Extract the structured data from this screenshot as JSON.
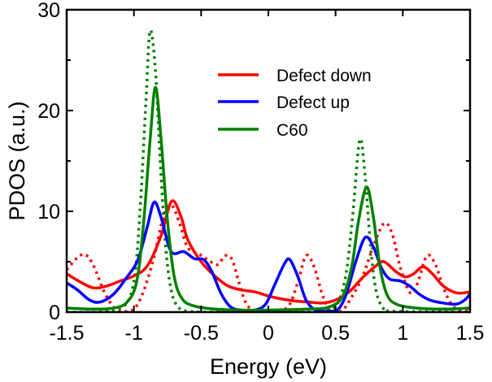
{
  "chart_data": {
    "type": "line",
    "title": "",
    "xlabel": "Energy (eV)",
    "ylabel": "PDOS (a.u.)",
    "xlim": [
      -1.5,
      1.5
    ],
    "ylim": [
      0,
      30
    ],
    "x_ticks": [
      -1.5,
      -1,
      -0.5,
      0,
      0.5,
      1,
      1.5
    ],
    "x_tick_labels": [
      "-1.5",
      "-1",
      "-0.5",
      "0",
      "0.5",
      "1",
      "1.5"
    ],
    "y_ticks": [
      0,
      10,
      20,
      30
    ],
    "y_tick_labels": [
      "0",
      "10",
      "20",
      "30"
    ],
    "y_minor_ticks": [
      5,
      15,
      25
    ],
    "grid": false,
    "legend_position": "top-center",
    "legend": [
      {
        "label": "Defect down",
        "color": "#ff0000"
      },
      {
        "label": "Defect up",
        "color": "#0000ff"
      },
      {
        "label": "C60",
        "color": "#008000"
      }
    ],
    "series": [
      {
        "name": "Defect down",
        "style": "solid",
        "color": "#ff0000",
        "points": [
          [
            -1.5,
            3.8
          ],
          [
            -1.4,
            3.0
          ],
          [
            -1.3,
            2.4
          ],
          [
            -1.2,
            2.6
          ],
          [
            -1.1,
            3.1
          ],
          [
            -1.0,
            3.6
          ],
          [
            -0.9,
            4.6
          ],
          [
            -0.8,
            7.5
          ],
          [
            -0.72,
            11.0
          ],
          [
            -0.65,
            9.5
          ],
          [
            -0.6,
            7.2
          ],
          [
            -0.5,
            5.0
          ],
          [
            -0.4,
            3.6
          ],
          [
            -0.3,
            2.6
          ],
          [
            -0.2,
            2.2
          ],
          [
            -0.1,
            2.0
          ],
          [
            0.0,
            1.6
          ],
          [
            0.1,
            1.3
          ],
          [
            0.2,
            1.1
          ],
          [
            0.3,
            1.0
          ],
          [
            0.4,
            0.9
          ],
          [
            0.5,
            1.2
          ],
          [
            0.6,
            2.0
          ],
          [
            0.7,
            3.4
          ],
          [
            0.8,
            4.6
          ],
          [
            0.86,
            5.0
          ],
          [
            0.95,
            4.0
          ],
          [
            1.02,
            3.5
          ],
          [
            1.08,
            3.8
          ],
          [
            1.15,
            4.5
          ],
          [
            1.22,
            3.8
          ],
          [
            1.3,
            2.6
          ],
          [
            1.4,
            1.9
          ],
          [
            1.5,
            2.0
          ]
        ]
      },
      {
        "name": "Defect down (dotted)",
        "style": "dotted",
        "color": "#ff0000",
        "points": [
          [
            -1.5,
            4.2
          ],
          [
            -1.42,
            5.4
          ],
          [
            -1.36,
            5.7
          ],
          [
            -1.3,
            4.6
          ],
          [
            -1.22,
            2.0
          ],
          [
            -1.15,
            0.5
          ],
          [
            -1.08,
            0.1
          ],
          [
            -1.0,
            0.3
          ],
          [
            -0.93,
            2.0
          ],
          [
            -0.85,
            5.5
          ],
          [
            -0.78,
            9.5
          ],
          [
            -0.72,
            10.6
          ],
          [
            -0.66,
            8.8
          ],
          [
            -0.6,
            6.4
          ],
          [
            -0.52,
            5.8
          ],
          [
            -0.45,
            5.2
          ],
          [
            -0.38,
            4.7
          ],
          [
            -0.32,
            5.6
          ],
          [
            -0.27,
            5.2
          ],
          [
            -0.22,
            3.0
          ],
          [
            -0.17,
            1.0
          ],
          [
            -0.1,
            0.1
          ],
          [
            0.05,
            0.1
          ],
          [
            0.15,
            0.6
          ],
          [
            0.22,
            3.0
          ],
          [
            0.28,
            5.6
          ],
          [
            0.34,
            4.5
          ],
          [
            0.4,
            1.8
          ],
          [
            0.45,
            0.3
          ],
          [
            0.5,
            0.0
          ],
          [
            0.56,
            0.3
          ],
          [
            0.62,
            1.5
          ],
          [
            0.7,
            3.5
          ],
          [
            0.78,
            6.5
          ],
          [
            0.86,
            8.8
          ],
          [
            0.92,
            7.8
          ],
          [
            0.98,
            4.5
          ],
          [
            1.04,
            2.2
          ],
          [
            1.08,
            2.0
          ],
          [
            1.12,
            3.3
          ],
          [
            1.18,
            5.6
          ],
          [
            1.24,
            4.8
          ],
          [
            1.3,
            2.5
          ],
          [
            1.36,
            0.8
          ],
          [
            1.42,
            0.2
          ],
          [
            1.5,
            0.1
          ]
        ]
      },
      {
        "name": "Defect up",
        "style": "solid",
        "color": "#0000ff",
        "points": [
          [
            -1.5,
            2.9
          ],
          [
            -1.42,
            2.2
          ],
          [
            -1.33,
            1.2
          ],
          [
            -1.25,
            1.0
          ],
          [
            -1.15,
            1.8
          ],
          [
            -1.05,
            3.5
          ],
          [
            -0.97,
            5.2
          ],
          [
            -0.9,
            8.5
          ],
          [
            -0.85,
            10.9
          ],
          [
            -0.8,
            9.5
          ],
          [
            -0.74,
            6.5
          ],
          [
            -0.7,
            5.8
          ],
          [
            -0.63,
            6.0
          ],
          [
            -0.55,
            5.3
          ],
          [
            -0.48,
            5.2
          ],
          [
            -0.42,
            4.0
          ],
          [
            -0.35,
            1.8
          ],
          [
            -0.28,
            0.5
          ],
          [
            -0.2,
            0.2
          ],
          [
            -0.1,
            0.2
          ],
          [
            -0.02,
            0.8
          ],
          [
            0.05,
            2.8
          ],
          [
            0.12,
            4.8
          ],
          [
            0.16,
            5.2
          ],
          [
            0.22,
            3.5
          ],
          [
            0.28,
            1.2
          ],
          [
            0.35,
            0.2
          ],
          [
            0.45,
            0.1
          ],
          [
            0.52,
            0.3
          ],
          [
            0.58,
            1.8
          ],
          [
            0.65,
            5.0
          ],
          [
            0.72,
            7.4
          ],
          [
            0.78,
            6.5
          ],
          [
            0.84,
            4.4
          ],
          [
            0.9,
            3.3
          ],
          [
            0.98,
            3.1
          ],
          [
            1.05,
            2.6
          ],
          [
            1.12,
            1.8
          ],
          [
            1.2,
            1.2
          ],
          [
            1.3,
            0.9
          ],
          [
            1.4,
            0.8
          ],
          [
            1.46,
            1.2
          ],
          [
            1.5,
            1.8
          ]
        ]
      },
      {
        "name": "C60",
        "style": "solid",
        "color": "#008000",
        "points": [
          [
            -1.5,
            0.4
          ],
          [
            -1.3,
            0.3
          ],
          [
            -1.15,
            0.4
          ],
          [
            -1.05,
            1.0
          ],
          [
            -0.98,
            3.0
          ],
          [
            -0.93,
            8.5
          ],
          [
            -0.88,
            17.0
          ],
          [
            -0.84,
            22.3
          ],
          [
            -0.8,
            17.5
          ],
          [
            -0.75,
            9.0
          ],
          [
            -0.7,
            3.5
          ],
          [
            -0.64,
            1.3
          ],
          [
            -0.55,
            0.6
          ],
          [
            -0.4,
            0.3
          ],
          [
            -0.2,
            0.2
          ],
          [
            0.0,
            0.2
          ],
          [
            0.3,
            0.3
          ],
          [
            0.45,
            0.5
          ],
          [
            0.55,
            1.5
          ],
          [
            0.62,
            4.5
          ],
          [
            0.67,
            9.0
          ],
          [
            0.73,
            12.4
          ],
          [
            0.78,
            9.5
          ],
          [
            0.83,
            4.5
          ],
          [
            0.88,
            1.8
          ],
          [
            0.95,
            0.8
          ],
          [
            1.1,
            0.4
          ],
          [
            1.3,
            0.3
          ],
          [
            1.5,
            0.4
          ]
        ]
      },
      {
        "name": "C60 (dotted)",
        "style": "dotted",
        "color": "#008000",
        "points": [
          [
            -1.5,
            0.0
          ],
          [
            -1.25,
            0.0
          ],
          [
            -1.12,
            0.3
          ],
          [
            -1.04,
            1.2
          ],
          [
            -0.99,
            4.0
          ],
          [
            -0.95,
            11.0
          ],
          [
            -0.91,
            21.0
          ],
          [
            -0.88,
            27.9
          ],
          [
            -0.84,
            24.0
          ],
          [
            -0.8,
            14.0
          ],
          [
            -0.76,
            6.0
          ],
          [
            -0.72,
            2.0
          ],
          [
            -0.67,
            0.5
          ],
          [
            -0.6,
            0.1
          ],
          [
            -0.4,
            0.0
          ],
          [
            0.3,
            0.0
          ],
          [
            0.45,
            0.2
          ],
          [
            0.52,
            1.0
          ],
          [
            0.58,
            4.0
          ],
          [
            0.63,
            10.0
          ],
          [
            0.68,
            17.1
          ],
          [
            0.72,
            13.5
          ],
          [
            0.76,
            6.5
          ],
          [
            0.8,
            2.2
          ],
          [
            0.85,
            0.5
          ],
          [
            0.92,
            0.1
          ],
          [
            1.5,
            0.0
          ]
        ]
      }
    ]
  }
}
